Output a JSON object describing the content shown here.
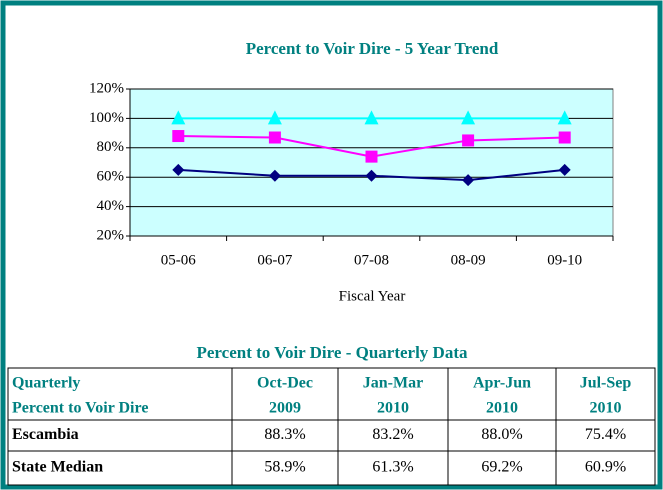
{
  "chart_data": {
    "type": "line",
    "title": "Percent to Voir Dire - 5 Year Trend",
    "x_label": "Fiscal Year",
    "categories": [
      "05-06",
      "06-07",
      "07-08",
      "08-09",
      "09-10"
    ],
    "series": [
      {
        "color": "#000080",
        "marker": "diamond",
        "values": [
          65,
          61,
          61,
          58,
          65
        ]
      },
      {
        "color": "#ff00ff",
        "marker": "square",
        "values": [
          88,
          87,
          74,
          85,
          87
        ]
      },
      {
        "color": "#00ffff",
        "marker": "triangle",
        "values": [
          100,
          100,
          100,
          100,
          100
        ]
      }
    ],
    "ylim": [
      20,
      120
    ],
    "yticks": [
      {
        "value": 20,
        "label": "20%"
      },
      {
        "value": 40,
        "label": "40%"
      },
      {
        "value": 60,
        "label": "60%"
      },
      {
        "value": 80,
        "label": "80%"
      },
      {
        "value": 100,
        "label": "100%"
      },
      {
        "value": 120,
        "label": "120%"
      }
    ],
    "grid": true,
    "plot_background": "#ccffff"
  },
  "table": {
    "title": "Percent to Voir Dire - Quarterly Data",
    "header": [
      [
        "Quarterly",
        "Percent to Voir Dire"
      ],
      [
        "Oct-Dec",
        "2009"
      ],
      [
        "Jan-Mar",
        "2010"
      ],
      [
        "Apr-Jun",
        "2010"
      ],
      [
        "Jul-Sep",
        "2010"
      ]
    ],
    "rows": [
      [
        "Escambia",
        "88.3%",
        "83.2%",
        "88.0%",
        "75.4%"
      ],
      [
        "State Median",
        "58.9%",
        "61.3%",
        "69.2%",
        "60.9%"
      ]
    ]
  }
}
